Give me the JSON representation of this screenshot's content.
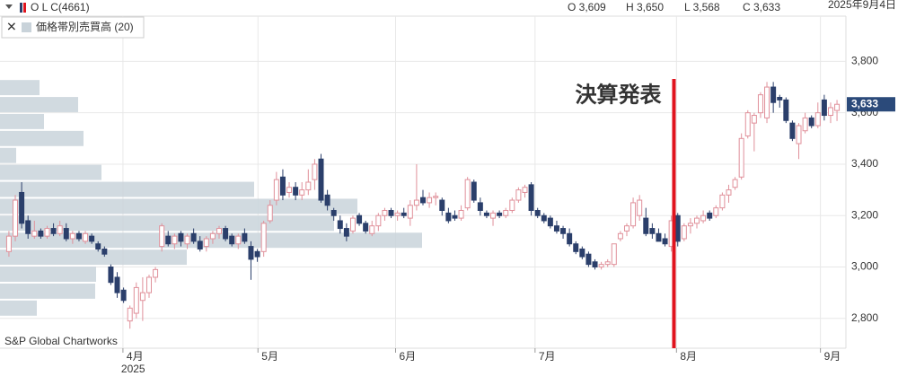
{
  "header": {
    "symbol": "O L C(4661)",
    "open": "O 3,609",
    "high": "H 3,650",
    "low": "L 3,568",
    "close": "C 3,633",
    "date": "2025年9月4日"
  },
  "legend": {
    "close_icon": "✕",
    "label": "価格帯別売買高 (20)"
  },
  "credit": "S&P Global Chartworks",
  "chart_data": {
    "type": "candlestick",
    "up_color": "#e0909a",
    "down_color": "#2b3f6b",
    "grid": true,
    "ylim": [
      2684,
      3976
    ],
    "yticks": [
      {
        "value": 2800,
        "label": "2,800"
      },
      {
        "value": 3000,
        "label": "3,000"
      },
      {
        "value": 3200,
        "label": "3,200"
      },
      {
        "value": 3400,
        "label": "3,400"
      },
      {
        "value": 3600,
        "label": "3,600"
      },
      {
        "value": 3800,
        "label": "3,800"
      }
    ],
    "xlim": [
      -1.4,
      131.4
    ],
    "xticks": [
      {
        "value": 17.9,
        "label": "4月"
      },
      {
        "value": 39.1,
        "label": "5月"
      },
      {
        "value": 60.7,
        "label": "6月"
      },
      {
        "value": 82.6,
        "label": "7月"
      },
      {
        "value": 104.8,
        "label": "8月"
      },
      {
        "value": 127.4,
        "label": "9月"
      }
    ],
    "year_label": "2025",
    "last_price": {
      "value": 3633,
      "label": "3,633"
    },
    "annotation": {
      "text": "決算発表",
      "x": 104.4,
      "color": "#e0141e"
    },
    "volume_profile": {
      "color": "#c9d3da",
      "bins": [
        2807,
        2873,
        2939,
        3005,
        3071,
        3137,
        3203,
        3269,
        3335,
        3401,
        3467,
        3533,
        3599,
        3665,
        3731
      ],
      "values": [
        41,
        106,
        107,
        208,
        470,
        372,
        398,
        283,
        113,
        18,
        93,
        49,
        87,
        44
      ]
    },
    "candles": [
      [
        3060,
        3140,
        3040,
        3120
      ],
      [
        3120,
        3280,
        3100,
        3260
      ],
      [
        3290,
        3330,
        3150,
        3170
      ],
      [
        3180,
        3200,
        3110,
        3130
      ],
      [
        3120,
        3180,
        3110,
        3140
      ],
      [
        3140,
        3150,
        3110,
        3120
      ],
      [
        3120,
        3160,
        3110,
        3150
      ],
      [
        3150,
        3170,
        3120,
        3130
      ],
      [
        3130,
        3180,
        3120,
        3160
      ],
      [
        3150,
        3170,
        3100,
        3110
      ],
      [
        3110,
        3140,
        3090,
        3130
      ],
      [
        3130,
        3140,
        3100,
        3110
      ],
      [
        3100,
        3140,
        3090,
        3130
      ],
      [
        3120,
        3130,
        3090,
        3100
      ],
      [
        3090,
        3100,
        3060,
        3070
      ],
      [
        3070,
        3080,
        3040,
        3050
      ],
      [
        3000,
        3010,
        2930,
        2940
      ],
      [
        2960,
        2980,
        2880,
        2900
      ],
      [
        2910,
        2920,
        2860,
        2870
      ],
      [
        2790,
        2850,
        2760,
        2840
      ],
      [
        2820,
        2940,
        2800,
        2920
      ],
      [
        2870,
        2960,
        2790,
        2900
      ],
      [
        2900,
        2970,
        2880,
        2960
      ],
      [
        2960,
        3000,
        2940,
        2990
      ],
      [
        3080,
        3170,
        3060,
        3160
      ],
      [
        3120,
        3140,
        3080,
        3090
      ],
      [
        3090,
        3130,
        3070,
        3120
      ],
      [
        3130,
        3140,
        3080,
        3100
      ],
      [
        3090,
        3130,
        3070,
        3120
      ],
      [
        3130,
        3150,
        3090,
        3100
      ],
      [
        3100,
        3120,
        3060,
        3070
      ],
      [
        3080,
        3120,
        3060,
        3110
      ],
      [
        3110,
        3140,
        3090,
        3130
      ],
      [
        3130,
        3160,
        3110,
        3150
      ],
      [
        3150,
        3160,
        3100,
        3110
      ],
      [
        3120,
        3130,
        3080,
        3090
      ],
      [
        3090,
        3130,
        3070,
        3120
      ],
      [
        3130,
        3150,
        3090,
        3100
      ],
      [
        3080,
        3100,
        2950,
        3030
      ],
      [
        3060,
        3070,
        3020,
        3040
      ],
      [
        3060,
        3180,
        3040,
        3170
      ],
      [
        3180,
        3260,
        3170,
        3240
      ],
      [
        3260,
        3370,
        3240,
        3340
      ],
      [
        3350,
        3380,
        3260,
        3280
      ],
      [
        3290,
        3330,
        3270,
        3310
      ],
      [
        3310,
        3330,
        3260,
        3280
      ],
      [
        3280,
        3330,
        3260,
        3300
      ],
      [
        3300,
        3380,
        3280,
        3330
      ],
      [
        3340,
        3420,
        3300,
        3400
      ],
      [
        3420,
        3440,
        3250,
        3260
      ],
      [
        3280,
        3300,
        3220,
        3240
      ],
      [
        3220,
        3230,
        3180,
        3200
      ],
      [
        3180,
        3200,
        3130,
        3150
      ],
      [
        3150,
        3170,
        3100,
        3120
      ],
      [
        3140,
        3200,
        3130,
        3190
      ],
      [
        3200,
        3210,
        3160,
        3170
      ],
      [
        3170,
        3180,
        3130,
        3140
      ],
      [
        3130,
        3180,
        3120,
        3160
      ],
      [
        3160,
        3210,
        3140,
        3200
      ],
      [
        3200,
        3230,
        3180,
        3220
      ],
      [
        3220,
        3230,
        3190,
        3200
      ],
      [
        3200,
        3220,
        3180,
        3210
      ],
      [
        3210,
        3230,
        3190,
        3200
      ],
      [
        3190,
        3260,
        3160,
        3240
      ],
      [
        3240,
        3400,
        3220,
        3260
      ],
      [
        3270,
        3300,
        3240,
        3250
      ],
      [
        3250,
        3290,
        3230,
        3270
      ],
      [
        3270,
        3290,
        3240,
        3275
      ],
      [
        3260,
        3270,
        3200,
        3220
      ],
      [
        3210,
        3230,
        3170,
        3180
      ],
      [
        3200,
        3220,
        3180,
        3190
      ],
      [
        3190,
        3240,
        3180,
        3220
      ],
      [
        3230,
        3350,
        3220,
        3340
      ],
      [
        3330,
        3340,
        3250,
        3260
      ],
      [
        3250,
        3270,
        3200,
        3220
      ],
      [
        3210,
        3220,
        3190,
        3200
      ],
      [
        3190,
        3220,
        3160,
        3210
      ],
      [
        3210,
        3220,
        3190,
        3200
      ],
      [
        3200,
        3230,
        3190,
        3220
      ],
      [
        3220,
        3270,
        3210,
        3260
      ],
      [
        3260,
        3310,
        3250,
        3300
      ],
      [
        3290,
        3320,
        3270,
        3310
      ],
      [
        3320,
        3330,
        3200,
        3220
      ],
      [
        3220,
        3230,
        3190,
        3200
      ],
      [
        3200,
        3210,
        3170,
        3180
      ],
      [
        3190,
        3200,
        3150,
        3160
      ],
      [
        3160,
        3180,
        3130,
        3140
      ],
      [
        3150,
        3160,
        3110,
        3130
      ],
      [
        3130,
        3150,
        3080,
        3090
      ],
      [
        3090,
        3100,
        3050,
        3060
      ],
      [
        3070,
        3080,
        3030,
        3040
      ],
      [
        3050,
        3060,
        3000,
        3010
      ],
      [
        3020,
        3030,
        2990,
        3000
      ],
      [
        3000,
        3020,
        2990,
        3010
      ],
      [
        3010,
        3030,
        3000,
        3020
      ],
      [
        3010,
        3090,
        3000,
        3090
      ],
      [
        3110,
        3140,
        3100,
        3130
      ],
      [
        3140,
        3170,
        3120,
        3160
      ],
      [
        3160,
        3270,
        3150,
        3250
      ],
      [
        3200,
        3280,
        3180,
        3260
      ],
      [
        3190,
        3230,
        3120,
        3130
      ],
      [
        3150,
        3170,
        3110,
        3130
      ],
      [
        3130,
        3150,
        3100,
        3100
      ],
      [
        3110,
        3130,
        3080,
        3090
      ],
      [
        3080,
        3200,
        3060,
        3180
      ],
      [
        3200,
        3210,
        3080,
        3100
      ],
      [
        3110,
        3170,
        3100,
        3160
      ],
      [
        3160,
        3190,
        3130,
        3170
      ],
      [
        3170,
        3200,
        3150,
        3190
      ],
      [
        3180,
        3220,
        3170,
        3200
      ],
      [
        3210,
        3220,
        3180,
        3190
      ],
      [
        3200,
        3240,
        3190,
        3230
      ],
      [
        3230,
        3290,
        3220,
        3280
      ],
      [
        3280,
        3320,
        3250,
        3300
      ],
      [
        3310,
        3350,
        3300,
        3340
      ],
      [
        3350,
        3520,
        3340,
        3500
      ],
      [
        3510,
        3610,
        3500,
        3600
      ],
      [
        3560,
        3600,
        3450,
        3590
      ],
      [
        3600,
        3680,
        3580,
        3670
      ],
      [
        3580,
        3720,
        3560,
        3700
      ],
      [
        3700,
        3720,
        3600,
        3640
      ],
      [
        3660,
        3670,
        3620,
        3650
      ],
      [
        3650,
        3660,
        3560,
        3570
      ],
      [
        3560,
        3570,
        3490,
        3500
      ],
      [
        3480,
        3560,
        3420,
        3550
      ],
      [
        3530,
        3600,
        3520,
        3580
      ],
      [
        3580,
        3590,
        3540,
        3550
      ],
      [
        3550,
        3640,
        3540,
        3600
      ],
      [
        3650,
        3670,
        3570,
        3590
      ],
      [
        3590,
        3640,
        3560,
        3620
      ],
      [
        3609,
        3650,
        3568,
        3633
      ]
    ]
  }
}
